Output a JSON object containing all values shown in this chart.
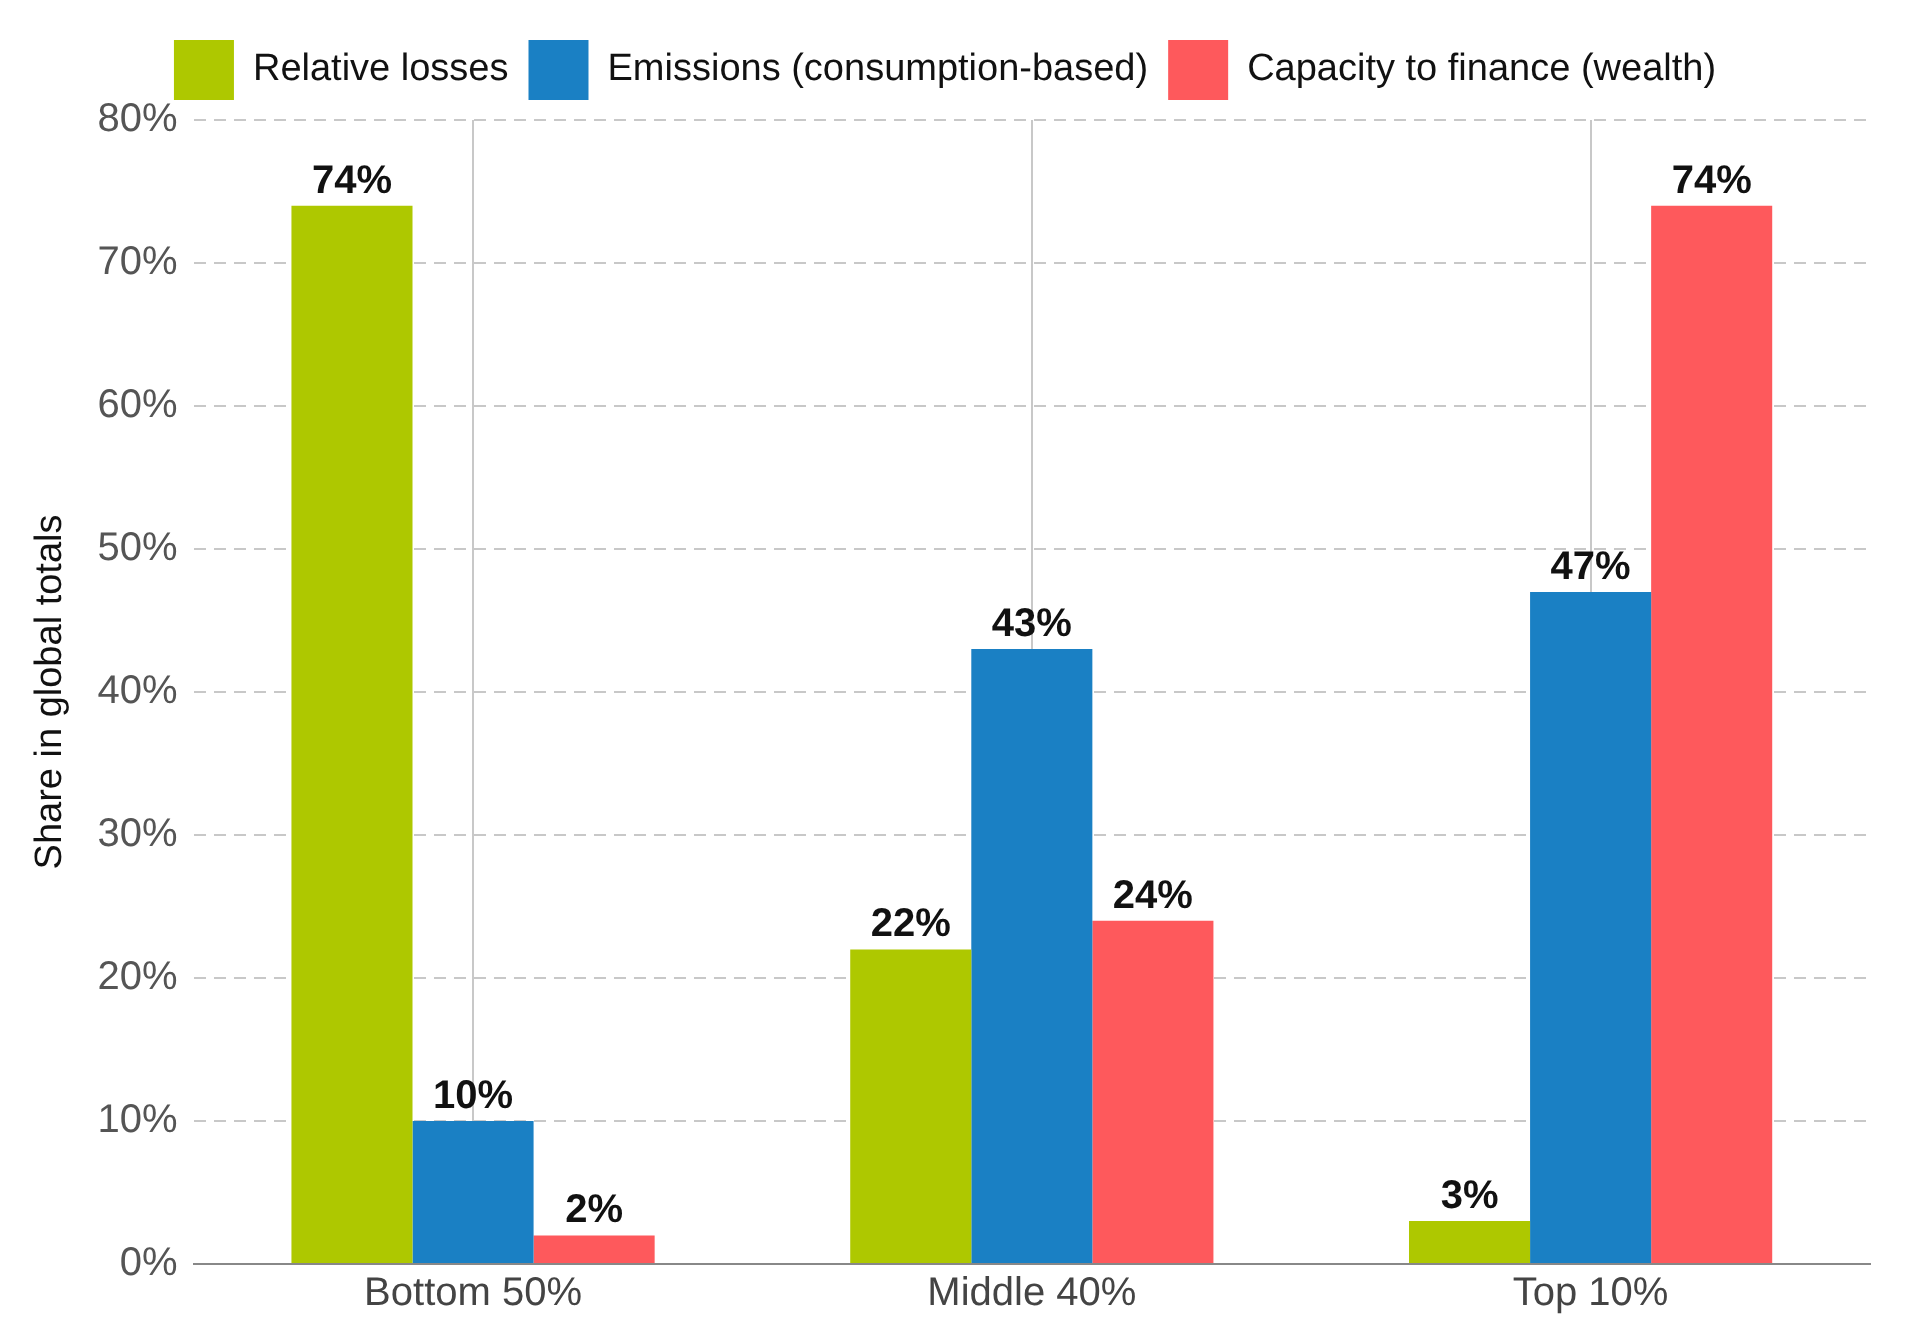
{
  "chart_data": {
    "type": "bar",
    "ylabel": "Share in global totals",
    "categories": [
      "Bottom 50%",
      "Middle 40%",
      "Top 10%"
    ],
    "series": [
      {
        "name": "Relative losses",
        "color": "#aec800",
        "values": [
          74,
          22,
          3
        ],
        "value_labels": [
          "74%",
          "22%",
          "3%"
        ]
      },
      {
        "name": "Emissions (consumption-based)",
        "color": "#1a80c4",
        "values": [
          10,
          43,
          47
        ],
        "value_labels": [
          "10%",
          "43%",
          "47%"
        ]
      },
      {
        "name": "Capacity to finance (wealth)",
        "color": "#fe595c",
        "values": [
          2,
          24,
          74
        ],
        "value_labels": [
          "2%",
          "24%",
          "74%"
        ]
      }
    ],
    "ylim": [
      0,
      80
    ],
    "yticks": [
      {
        "value": 0,
        "label": "0%"
      },
      {
        "value": 10,
        "label": "10%"
      },
      {
        "value": 20,
        "label": "20%"
      },
      {
        "value": 30,
        "label": "30%"
      },
      {
        "value": 40,
        "label": "40%"
      },
      {
        "value": 50,
        "label": "50%"
      },
      {
        "value": 60,
        "label": "60%"
      },
      {
        "value": 70,
        "label": "70%"
      },
      {
        "value": 80,
        "label": "80%"
      }
    ],
    "grid": true,
    "legend": "top"
  }
}
